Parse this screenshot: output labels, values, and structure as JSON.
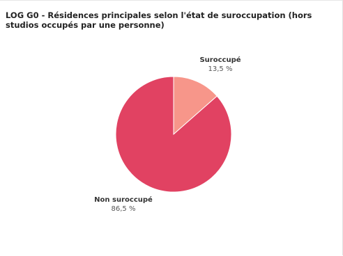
{
  "chart_title": "LOG G0 - Résidences principales selon l'état de suroccupation (hors studios occupés par une personne)",
  "chart_data": {
    "type": "pie",
    "title": "LOG G0 - Résidences principales selon l'état de suroccupation (hors studios occupés par une personne)",
    "slices": [
      {
        "label": "Suroccupé",
        "value": 13.5,
        "value_text": "13,5 %",
        "color": "#f7968a"
      },
      {
        "label": "Non suroccupé",
        "value": 86.5,
        "value_text": "86,5 %",
        "color": "#e14262"
      }
    ],
    "legend": "none",
    "labels": "outside"
  }
}
